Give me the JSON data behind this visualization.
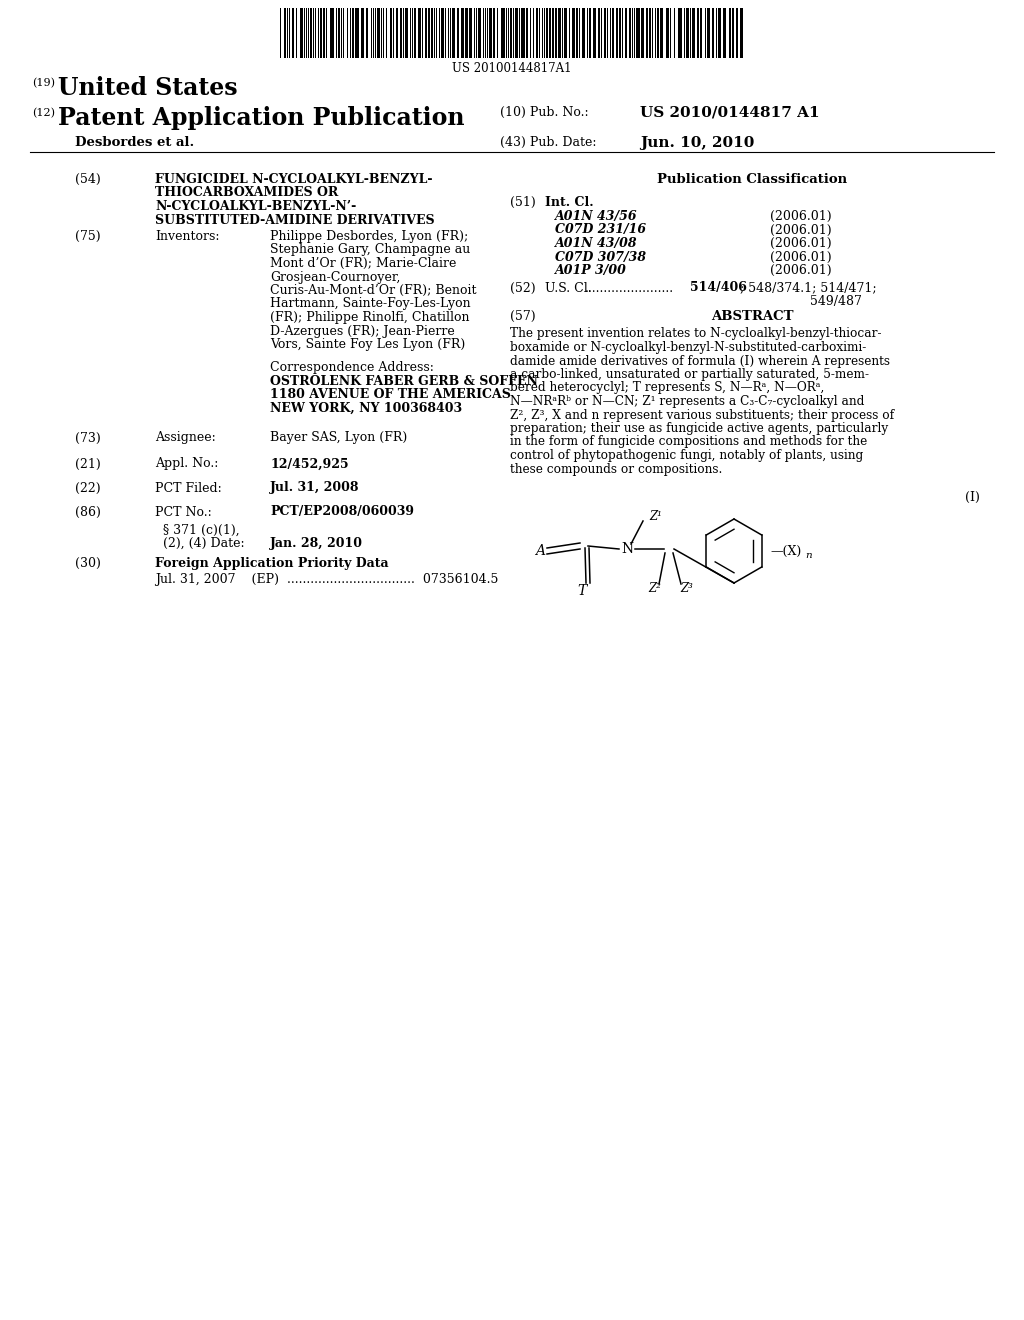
{
  "background_color": "#ffffff",
  "barcode_text": "US 20100144817A1",
  "title_19_sup": "(19)",
  "title_19_text": "United States",
  "title_12_sup": "(12)",
  "title_12_text": "Patent Application Publication",
  "pub_no_label": "(10) Pub. No.:",
  "pub_no_value": "US 2010/0144817 A1",
  "authors": "Desbordes et al.",
  "pub_date_label": "(43) Pub. Date:",
  "pub_date_value": "Jun. 10, 2010",
  "field54_num": "(54)",
  "field54_lines": [
    "FUNGICIDEL N-CYCLOALKYL-BENZYL-",
    "THIOCARBOXAMIDES OR",
    "N-CYCLOALKYL-BENZYL-N’-",
    "SUBSTITUTED-AMIDINE DERIVATIVES"
  ],
  "field75_num": "(75)",
  "field75_label": "Inventors:",
  "field75_inv_lines": [
    [
      "Philippe Desbordes",
      ", Lyon (FR);"
    ],
    [
      "Stephanie Gary",
      ", Champagne au"
    ],
    [
      "Mont d’Or (FR); ",
      "Marie-Claire"
    ],
    [
      "Grosjean-Cournoyer",
      ","
    ],
    [
      "Curis-Au-Mont-d’Or (FR); ",
      "Benoit"
    ],
    [
      "Hartmann",
      ", Sainte-Foy-Les-Lyon"
    ],
    [
      "(FR); ",
      "Philippe Rinolfi",
      ", Chatillon"
    ],
    [
      "D-Azergues (FR); ",
      "Jean-Pierre"
    ],
    [
      "Vors",
      ", Sainte Foy Les Lyon (FR)"
    ]
  ],
  "corr_label": "Correspondence Address:",
  "corr_lines": [
    [
      "OSTROLENK FABER GERB & SOFFEN",
      true
    ],
    [
      "1180 AVENUE OF THE AMERICAS",
      true
    ],
    [
      "NEW YORK, NY 100368403",
      true
    ]
  ],
  "field73_num": "(73)",
  "field73_label": "Assignee:",
  "field73_bold": "Bayer SAS",
  "field73_rest": ", Lyon (FR)",
  "field21_num": "(21)",
  "field21_label": "Appl. No.:",
  "field21_value": "12/452,925",
  "field22_num": "(22)",
  "field22_label": "PCT Filed:",
  "field22_value": "Jul. 31, 2008",
  "field86_num": "(86)",
  "field86_label": "PCT No.:",
  "field86_value": "PCT/EP2008/060039",
  "field86b_line1": "§ 371 (c)(1),",
  "field86b_line2": "(2), (4) Date:",
  "field86b_value": "Jan. 28, 2010",
  "field30_num": "(30)",
  "field30_label": "Foreign Application Priority Data",
  "field30_data": "Jul. 31, 2007    (EP)  .................................  07356104.5",
  "pub_class_title": "Publication Classification",
  "field51_num": "(51)",
  "field51_label": "Int. Cl.",
  "int_cl_entries": [
    [
      "A01N 43/56",
      "(2006.01)"
    ],
    [
      "C07D 231/16",
      "(2006.01)"
    ],
    [
      "A01N 43/08",
      "(2006.01)"
    ],
    [
      "C07D 307/38",
      "(2006.01)"
    ],
    [
      "A01P 3/00",
      "(2006.01)"
    ]
  ],
  "field52_num": "(52)",
  "field52_label": "U.S. Cl.",
  "field52_dots": ".......................",
  "field52_bold": "514/406",
  "field52_rest": "; 548/374.1; 514/471;",
  "field52_line2": "549/487",
  "field57_num": "(57)",
  "field57_label": "ABSTRACT",
  "abstract_lines": [
    "The present invention relates to N-cycloalkyl-benzyl-thiocar-",
    "boxamide or N-cycloalkyl-benzyl-N-substituted-carboximi-",
    "damide amide derivatives of formula (I) wherein A represents",
    "a carbo-linked, unsaturated or partially saturated, 5-mem-",
    "bered heterocyclyl; T represents S, N—Rᵃ, N—ORᵃ,",
    "N—NRᵃRᵇ or N—CN; Z¹ represents a C₃-C₇-cycloalkyl and",
    "Z², Z³, X and n represent various substituents; their process of",
    "preparation; their use as fungicide active agents, particularly",
    "in the form of fungicide compositions and methods for the",
    "control of phytopathogenic fungi, notably of plants, using",
    "these compounds or compositions."
  ],
  "formula_label": "(I)"
}
